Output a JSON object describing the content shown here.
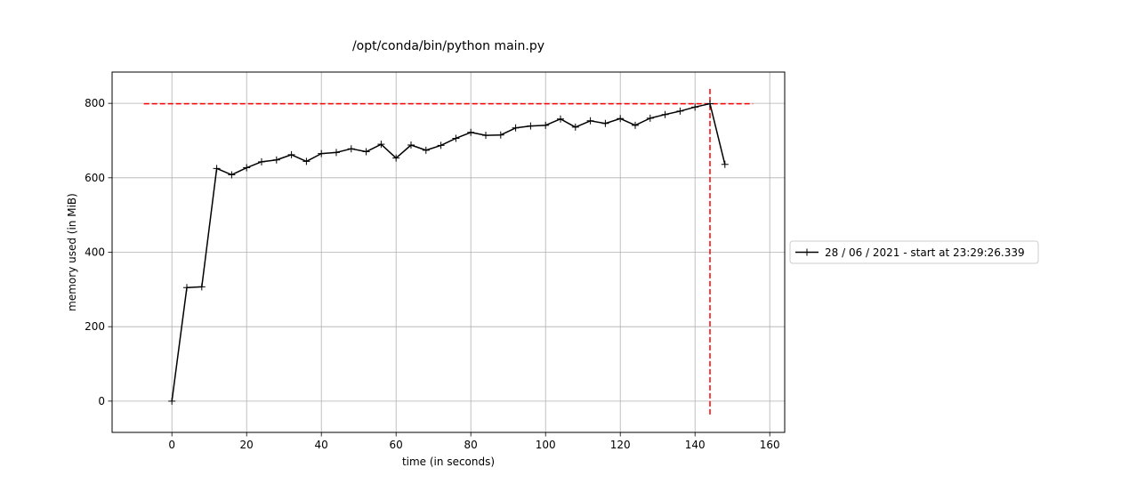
{
  "chart_data": {
    "type": "line",
    "title": "/opt/conda/bin/python main.py",
    "xlabel": "time (in seconds)",
    "ylabel": "memory used (in MiB)",
    "xlim": [
      -16,
      164
    ],
    "ylim": [
      -84,
      884
    ],
    "xticks": [
      0,
      20,
      40,
      60,
      80,
      100,
      120,
      140,
      160
    ],
    "yticks": [
      0,
      200,
      400,
      600,
      800
    ],
    "grid": true,
    "legend_position": "right",
    "series": [
      {
        "name": "28 / 06 / 2021 - start at 23:29:26.339",
        "color": "#000000",
        "marker": "+",
        "x": [
          0,
          4,
          8,
          12,
          16,
          20,
          24,
          28,
          32,
          36,
          40,
          44,
          48,
          52,
          56,
          60,
          64,
          68,
          72,
          76,
          80,
          84,
          88,
          92,
          96,
          100,
          104,
          108,
          112,
          116,
          120,
          124,
          128,
          132,
          136,
          140,
          144,
          148
        ],
        "y": [
          0,
          305,
          307,
          625,
          608,
          627,
          643,
          648,
          662,
          644,
          665,
          668,
          678,
          670,
          690,
          653,
          688,
          674,
          687,
          706,
          722,
          714,
          715,
          734,
          739,
          741,
          758,
          736,
          753,
          746,
          759,
          741,
          760,
          770,
          779,
          790,
          799,
          636
        ]
      }
    ],
    "annotations": [
      {
        "kind": "hline",
        "y": 799,
        "x_from": -7.5,
        "x_to": 155.5,
        "color": "#ff0000",
        "style": "dashed"
      },
      {
        "kind": "vline",
        "x": 144,
        "y_from": -39,
        "y_to": 839,
        "color": "#ff0000",
        "style": "dashed"
      }
    ]
  }
}
